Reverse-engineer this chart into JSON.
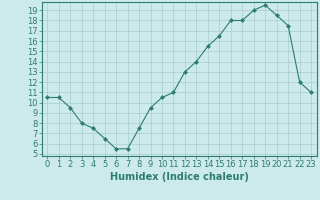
{
  "xlabel": "Humidex (Indice chaleur)",
  "ylabel": "",
  "x": [
    0,
    1,
    2,
    3,
    4,
    5,
    6,
    7,
    8,
    9,
    10,
    11,
    12,
    13,
    14,
    15,
    16,
    17,
    18,
    19,
    20,
    21,
    22,
    23
  ],
  "y": [
    10.5,
    10.5,
    9.5,
    8.0,
    7.5,
    6.5,
    5.5,
    5.5,
    7.5,
    9.5,
    10.5,
    11.0,
    13.0,
    14.0,
    15.5,
    16.5,
    18.0,
    18.0,
    19.0,
    19.5,
    18.5,
    17.5,
    12.0,
    11.0
  ],
  "xlim": [
    -0.5,
    23.5
  ],
  "ylim": [
    4.8,
    19.8
  ],
  "yticks": [
    5,
    6,
    7,
    8,
    9,
    10,
    11,
    12,
    13,
    14,
    15,
    16,
    17,
    18,
    19
  ],
  "xticks": [
    0,
    1,
    2,
    3,
    4,
    5,
    6,
    7,
    8,
    9,
    10,
    11,
    12,
    13,
    14,
    15,
    16,
    17,
    18,
    19,
    20,
    21,
    22,
    23
  ],
  "line_color": "#2e7d6e",
  "marker": "D",
  "marker_size": 2.0,
  "bg_color": "#cceaea",
  "grid_color": "#aacccc",
  "label_fontsize": 7.0,
  "tick_fontsize": 6.0
}
